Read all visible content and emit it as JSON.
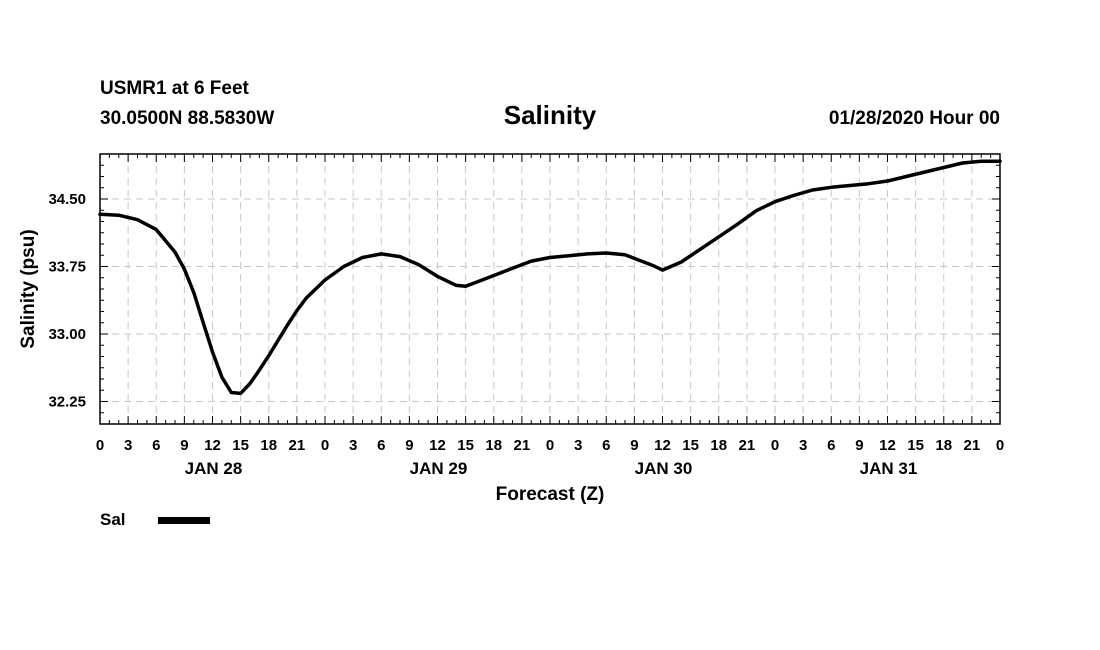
{
  "header": {
    "station": "USMR1 at 6 Feet",
    "coords": "30.0500N 88.5830W",
    "title": "Salinity",
    "datetime": "01/28/2020 Hour 00"
  },
  "legend": {
    "label": "Sal",
    "color": "#000000"
  },
  "chart_data": {
    "type": "line",
    "title": "Salinity",
    "xlabel": "Forecast (Z)",
    "ylabel": "Salinity (psu)",
    "xlim": [
      0,
      96
    ],
    "ylim": [
      32.0,
      35.0
    ],
    "grid": true,
    "x_ticks": [
      0,
      3,
      6,
      9,
      12,
      15,
      18,
      21,
      24,
      27,
      30,
      33,
      36,
      39,
      42,
      45,
      48,
      51,
      54,
      57,
      60,
      63,
      66,
      69,
      72,
      75,
      78,
      81,
      84,
      87,
      90,
      93,
      96
    ],
    "x_tick_labels": [
      "0",
      "3",
      "6",
      "9",
      "12",
      "15",
      "18",
      "21",
      "0",
      "3",
      "6",
      "9",
      "12",
      "15",
      "18",
      "21",
      "0",
      "3",
      "6",
      "9",
      "12",
      "15",
      "18",
      "21",
      "0",
      "3",
      "6",
      "9",
      "12",
      "15",
      "18",
      "21",
      "0"
    ],
    "day_labels": [
      {
        "x": 12,
        "label": "JAN 28"
      },
      {
        "x": 36,
        "label": "JAN 29"
      },
      {
        "x": 60,
        "label": "JAN 30"
      },
      {
        "x": 84,
        "label": "JAN 31"
      }
    ],
    "y_ticks": [
      32.25,
      33.0,
      33.75,
      34.5
    ],
    "y_tick_labels": [
      "32.25",
      "33.00",
      "33.75",
      "34.50"
    ],
    "series": [
      {
        "name": "Sal",
        "color": "#000000",
        "x": [
          0,
          2,
          4,
          6,
          8,
          9,
          10,
          11,
          12,
          13,
          14,
          15,
          16,
          17,
          18,
          19,
          20,
          21,
          22,
          24,
          26,
          28,
          30,
          32,
          34,
          36,
          38,
          39,
          40,
          42,
          44,
          46,
          48,
          50,
          52,
          54,
          56,
          58,
          59,
          60,
          62,
          64,
          66,
          68,
          70,
          72,
          74,
          76,
          78,
          80,
          82,
          84,
          86,
          88,
          90,
          92,
          94,
          96
        ],
        "y": [
          34.33,
          34.32,
          34.27,
          34.16,
          33.91,
          33.72,
          33.46,
          33.13,
          32.8,
          32.52,
          32.35,
          32.34,
          32.45,
          32.6,
          32.76,
          32.93,
          33.1,
          33.26,
          33.4,
          33.6,
          33.75,
          33.85,
          33.89,
          33.86,
          33.77,
          33.64,
          33.54,
          33.53,
          33.57,
          33.65,
          33.73,
          33.81,
          33.85,
          33.87,
          33.89,
          33.9,
          33.88,
          33.8,
          33.76,
          33.71,
          33.8,
          33.94,
          34.08,
          34.22,
          34.37,
          34.47,
          34.54,
          34.6,
          34.63,
          34.65,
          34.67,
          34.7,
          34.75,
          34.8,
          34.85,
          34.9,
          34.92,
          34.92
        ]
      }
    ]
  }
}
